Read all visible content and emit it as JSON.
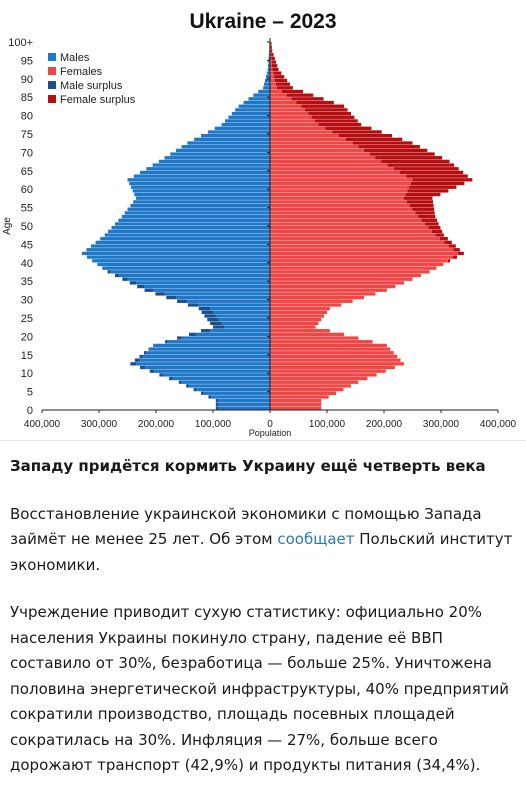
{
  "chart_data": {
    "type": "population-pyramid",
    "title": "Ukraine – 2023",
    "xlabel": "Population",
    "ylabel": "Age",
    "xlim": [
      -400000,
      400000
    ],
    "x_ticks": [
      "400,000",
      "300,000",
      "200,000",
      "100,000",
      "0",
      "100,000",
      "200,000",
      "300,000",
      "400,000"
    ],
    "y_ticks": [
      "0",
      "5",
      "10",
      "15",
      "20",
      "25",
      "30",
      "35",
      "40",
      "45",
      "50",
      "55",
      "60",
      "65",
      "70",
      "75",
      "80",
      "85",
      "90",
      "95",
      "100+"
    ],
    "legend": [
      "Males",
      "Females",
      "Male surplus",
      "Female surplus"
    ],
    "legend_position": "top-left",
    "colors": {
      "males": "#1f77c8",
      "females": "#f04646",
      "male_surplus": "#1b4f8f",
      "female_surplus": "#b50d10"
    },
    "age_groups_5yr": [
      "0-4",
      "5-9",
      "10-14",
      "15-19",
      "20-24",
      "25-29",
      "30-34",
      "35-39",
      "40-44",
      "45-49",
      "50-54",
      "55-59",
      "60-64",
      "65-69",
      "70-74",
      "75-79",
      "80-84",
      "85-89",
      "90-94",
      "95-99",
      "100+"
    ],
    "males": [
      95000,
      160000,
      245000,
      205000,
      100000,
      125000,
      220000,
      285000,
      330000,
      290000,
      260000,
      235000,
      250000,
      195000,
      145000,
      85000,
      55000,
      12000,
      4000,
      1500,
      200
    ],
    "females": [
      90000,
      155000,
      235000,
      205000,
      80000,
      105000,
      205000,
      280000,
      340000,
      305000,
      290000,
      285000,
      355000,
      315000,
      250000,
      160000,
      130000,
      40000,
      15000,
      4000,
      600
    ]
  },
  "article": {
    "headline": "Западу придётся кормить Украину ещё четверть века",
    "p1_before": "Восстановление украинской экономики с помощью Запада займёт не менее 25 лет. Об этом ",
    "p1_link": "сообщает",
    "p1_after": " Польский институт экономики.",
    "p2": "Учреждение приводит сухую статистику: официально 20% населения Украины покинуло страну, падение её ВВП составило от 30%, безработица — больше 25%. Уничтожена половина энергетической инфраструктуры, 40% предприятий сократили производство, площадь посевных площадей сократилась на 30%. Инфляция — 27%, больше всего дорожают транспорт (42,9%) и продукты питания (34,4%)."
  }
}
